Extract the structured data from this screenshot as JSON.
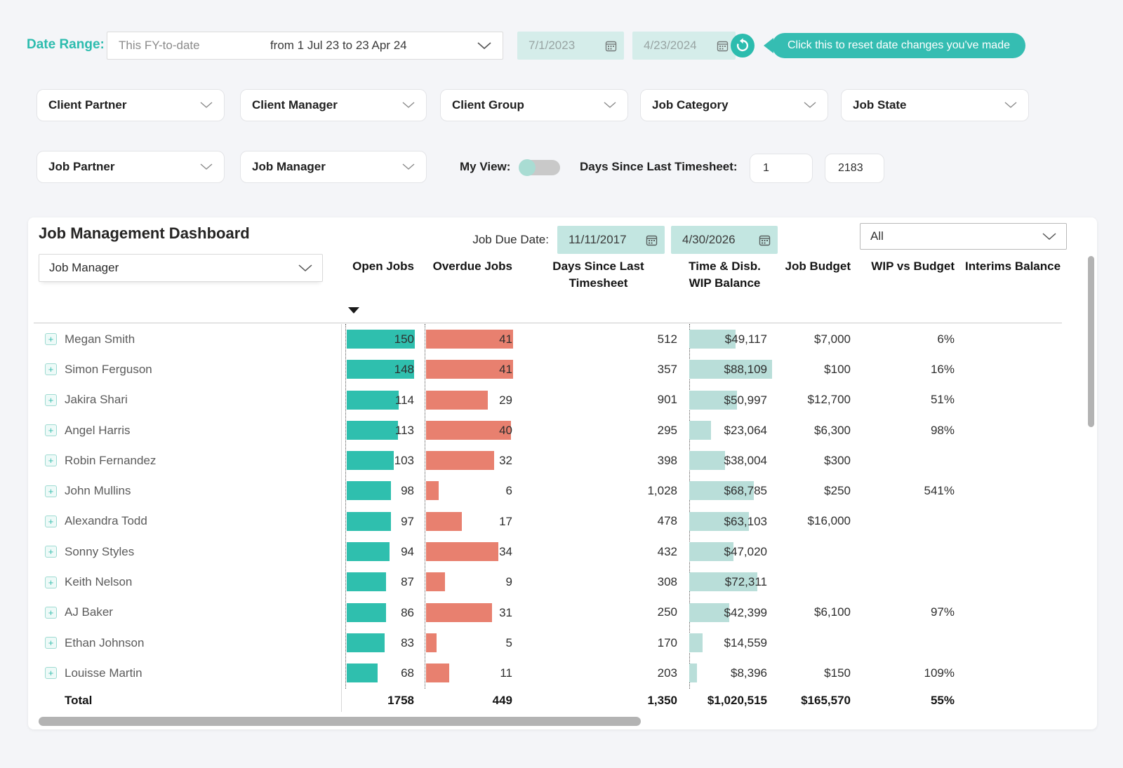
{
  "colors": {
    "accent_teal": "#2cbcae",
    "pill_teal": "#35bdb2",
    "open_bar": "#2fbfae",
    "overdue_bar": "#e8806f",
    "wip_bar": "#b9ded9",
    "date_input_bg": "#d5edea",
    "due_input_bg": "#c3e6e1",
    "page_bg": "#f4f5f8"
  },
  "date_range": {
    "label": "Date Range:",
    "preset": "This FY-to-date",
    "range_text": "from 1 Jul 23 to 23 Apr 24",
    "start_value": "7/1/2023",
    "end_value": "4/23/2024",
    "reset_tooltip": "Click this to reset date changes you've made"
  },
  "filters_row1": [
    {
      "label": "Client Partner"
    },
    {
      "label": "Client Manager"
    },
    {
      "label": "Client Group"
    },
    {
      "label": "Job Category"
    },
    {
      "label": "Job State"
    }
  ],
  "filters_row2": [
    {
      "label": "Job Partner"
    },
    {
      "label": "Job Manager"
    }
  ],
  "my_view": {
    "label": "My View:",
    "state": "off"
  },
  "days_since_filter": {
    "label": "Days Since Last Timesheet:",
    "min": "1",
    "max": "2183"
  },
  "dashboard": {
    "title": "Job Management Dashboard",
    "job_due_date_label": "Job Due Date:",
    "due_start": "11/11/2017",
    "due_end": "4/30/2026",
    "all_filter": "All",
    "group_by": "Job Manager",
    "columns": [
      "Open Jobs",
      "Overdue Jobs",
      "Days Since Last Timesheet",
      "Time & Disb. WIP Balance",
      "Job Budget",
      "WIP vs Budget",
      "Interims Balance"
    ],
    "sorted_by": "Open Jobs descending"
  },
  "rows": [
    {
      "name": "Megan Smith",
      "open_jobs": 150,
      "overdue_jobs": 41,
      "days_since": "512",
      "wip_value": 49117,
      "wip_label": "$49,117",
      "job_budget": "$7,000",
      "wip_vs_budget": "6%"
    },
    {
      "name": "Simon Ferguson",
      "open_jobs": 148,
      "overdue_jobs": 41,
      "days_since": "357",
      "wip_value": 88109,
      "wip_label": "$88,109",
      "job_budget": "$100",
      "wip_vs_budget": "16%"
    },
    {
      "name": "Jakira Shari",
      "open_jobs": 114,
      "overdue_jobs": 29,
      "days_since": "901",
      "wip_value": 50997,
      "wip_label": "$50,997",
      "job_budget": "$12,700",
      "wip_vs_budget": "51%"
    },
    {
      "name": "Angel Harris",
      "open_jobs": 113,
      "overdue_jobs": 40,
      "days_since": "295",
      "wip_value": 23064,
      "wip_label": "$23,064",
      "job_budget": "$6,300",
      "wip_vs_budget": "98%"
    },
    {
      "name": "Robin Fernandez",
      "open_jobs": 103,
      "overdue_jobs": 32,
      "days_since": "398",
      "wip_value": 38004,
      "wip_label": "$38,004",
      "job_budget": "$300",
      "wip_vs_budget": ""
    },
    {
      "name": "John Mullins",
      "open_jobs": 98,
      "overdue_jobs": 6,
      "days_since": "1,028",
      "wip_value": 68785,
      "wip_label": "$68,785",
      "job_budget": "$250",
      "wip_vs_budget": "541%"
    },
    {
      "name": "Alexandra Todd",
      "open_jobs": 97,
      "overdue_jobs": 17,
      "days_since": "478",
      "wip_value": 63103,
      "wip_label": "$63,103",
      "job_budget": "$16,000",
      "wip_vs_budget": ""
    },
    {
      "name": "Sonny Styles",
      "open_jobs": 94,
      "overdue_jobs": 34,
      "days_since": "432",
      "wip_value": 47020,
      "wip_label": "$47,020",
      "job_budget": "",
      "wip_vs_budget": ""
    },
    {
      "name": "Keith Nelson",
      "open_jobs": 87,
      "overdue_jobs": 9,
      "days_since": "308",
      "wip_value": 72311,
      "wip_label": "$72,311",
      "job_budget": "",
      "wip_vs_budget": ""
    },
    {
      "name": "AJ Baker",
      "open_jobs": 86,
      "overdue_jobs": 31,
      "days_since": "250",
      "wip_value": 42399,
      "wip_label": "$42,399",
      "job_budget": "$6,100",
      "wip_vs_budget": "97%"
    },
    {
      "name": "Ethan Johnson",
      "open_jobs": 83,
      "overdue_jobs": 5,
      "days_since": "170",
      "wip_value": 14559,
      "wip_label": "$14,559",
      "job_budget": "",
      "wip_vs_budget": ""
    },
    {
      "name": "Louisse Martin",
      "open_jobs": 68,
      "overdue_jobs": 11,
      "days_since": "203",
      "wip_value": 8396,
      "wip_label": "$8,396",
      "job_budget": "$150",
      "wip_vs_budget": "109%"
    }
  ],
  "total": {
    "label": "Total",
    "open_jobs": "1758",
    "overdue_jobs": "449",
    "days_since": "1,350",
    "wip_balance": "$1,020,515",
    "job_budget": "$165,570",
    "wip_vs_budget": "55%"
  }
}
